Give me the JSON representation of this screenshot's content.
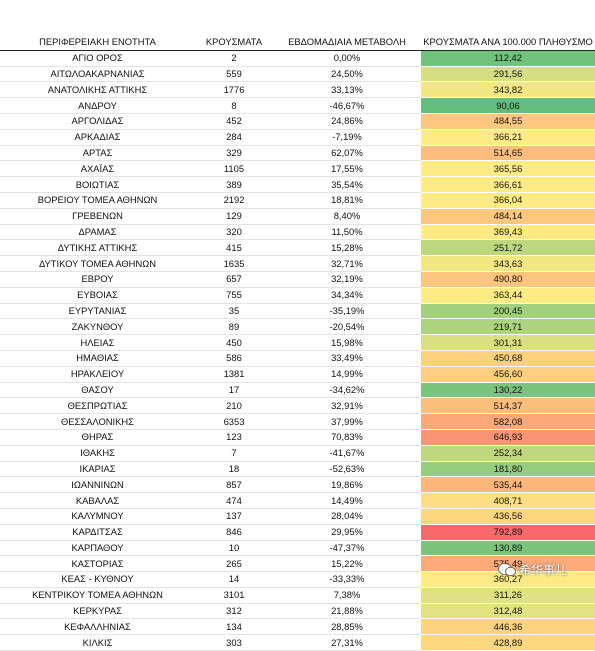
{
  "table": {
    "header": [
      "ΠΕΡΙΦΕΡΕΙΑΚΗ ΕΝΟΤΗΤΑ",
      "ΚΡΟΥΣΜΑΤΑ",
      "ΕΒΔΟΜΑΔΙΑΙΑ ΜΕΤΑΒΟΛΗ",
      "ΚΡΟΥΣΜΑΤΑ ΑΝΑ 100.000 ΠΛΗΘΥΣΜΟ"
    ],
    "rows": [
      [
        "ΑΓΙΟ ΟΡΟΣ",
        "2",
        "0,00%",
        "112,42"
      ],
      [
        "ΑΙΤΩΛΟΑΚΑΡΝΑΝΙΑΣ",
        "559",
        "24,50%",
        "291,56"
      ],
      [
        "ΑΝΑΤΟΛΙΚΗΣ ΑΤΤΙΚΗΣ",
        "1776",
        "33,13%",
        "343,82"
      ],
      [
        "ΑΝΔΡΟΥ",
        "8",
        "-46,67%",
        "90,06"
      ],
      [
        "ΑΡΓΟΛΙΔΑΣ",
        "452",
        "24,86%",
        "484,55"
      ],
      [
        "ΑΡΚΑΔΙΑΣ",
        "284",
        "-7,19%",
        "366,21"
      ],
      [
        "ΑΡΤΑΣ",
        "329",
        "62,07%",
        "514,65"
      ],
      [
        "ΑΧΑΪΑΣ",
        "1105",
        "17,55%",
        "365,56"
      ],
      [
        "ΒΟΙΩΤΙΑΣ",
        "389",
        "35,54%",
        "366,61"
      ],
      [
        "ΒΟΡΕΙΟΥ ΤΟΜΕΑ ΑΘΗΝΩΝ",
        "2192",
        "18,81%",
        "366,04"
      ],
      [
        "ΓΡΕΒΕΝΩΝ",
        "129",
        "8,40%",
        "484,14"
      ],
      [
        "ΔΡΑΜΑΣ",
        "320",
        "11,50%",
        "369,43"
      ],
      [
        "ΔΥΤΙΚΗΣ ΑΤΤΙΚΗΣ",
        "415",
        "15,28%",
        "251,72"
      ],
      [
        "ΔΥΤΙΚΟΥ ΤΟΜΕΑ ΑΘΗΝΩΝ",
        "1635",
        "32,71%",
        "343,63"
      ],
      [
        "ΕΒΡΟΥ",
        "657",
        "32,19%",
        "490,80"
      ],
      [
        "ΕΥΒΟΙΑΣ",
        "755",
        "34,34%",
        "363,44"
      ],
      [
        "ΕΥΡΥΤΑΝΙΑΣ",
        "35",
        "-35,19%",
        "200,45"
      ],
      [
        "ΖΑΚΥΝΘΟΥ",
        "89",
        "-20,54%",
        "219,71"
      ],
      [
        "ΗΛΕΙΑΣ",
        "450",
        "15,98%",
        "301,31"
      ],
      [
        "ΗΜΑΘΙΑΣ",
        "586",
        "33,49%",
        "450,68"
      ],
      [
        "ΗΡΑΚΛΕΙΟΥ",
        "1381",
        "14,99%",
        "456,60"
      ],
      [
        "ΘΑΣΟΥ",
        "17",
        "-34,62%",
        "130,22"
      ],
      [
        "ΘΕΣΠΡΩΤΙΑΣ",
        "210",
        "32,91%",
        "514,37"
      ],
      [
        "ΘΕΣΣΑΛΟΝΙΚΗΣ",
        "6353",
        "37,99%",
        "582,08"
      ],
      [
        "ΘΗΡΑΣ",
        "123",
        "70,83%",
        "646,93"
      ],
      [
        "ΙΘΑΚΗΣ",
        "7",
        "-41,67%",
        "252,34"
      ],
      [
        "ΙΚΑΡΙΑΣ",
        "18",
        "-52,63%",
        "181,80"
      ],
      [
        "ΙΩΑΝΝΙΝΩΝ",
        "857",
        "19,86%",
        "535,44"
      ],
      [
        "ΚΑΒΑΛΑΣ",
        "474",
        "14,49%",
        "408,71"
      ],
      [
        "ΚΑΛΥΜΝΟΥ",
        "137",
        "28,04%",
        "436,56"
      ],
      [
        "ΚΑΡΔΙΤΣΑΣ",
        "846",
        "29,95%",
        "792,89"
      ],
      [
        "ΚΑΡΠΑΘΟΥ",
        "10",
        "-47,37%",
        "130,89"
      ],
      [
        "ΚΑΣΤΟΡΙΑΣ",
        "265",
        "15,22%",
        "575,49"
      ],
      [
        "ΚΕΑΣ - ΚΥΘΝΟΥ",
        "14",
        "-33,33%",
        "360,27"
      ],
      [
        "ΚΕΝΤΡΙΚΟΥ ΤΟΜΕΑ ΑΘΗΝΩΝ",
        "3101",
        "7,38%",
        "311,26"
      ],
      [
        "ΚΕΡΚΥΡΑΣ",
        "312",
        "21,88%",
        "312,48"
      ],
      [
        "ΚΕΦΑΛΛΗΝΙΑΣ",
        "134",
        "28,85%",
        "446,36"
      ],
      [
        "ΚΙΛΚΙΣ",
        "303",
        "27,31%",
        "428,89"
      ]
    ]
  },
  "watermark": "希华事儿"
}
